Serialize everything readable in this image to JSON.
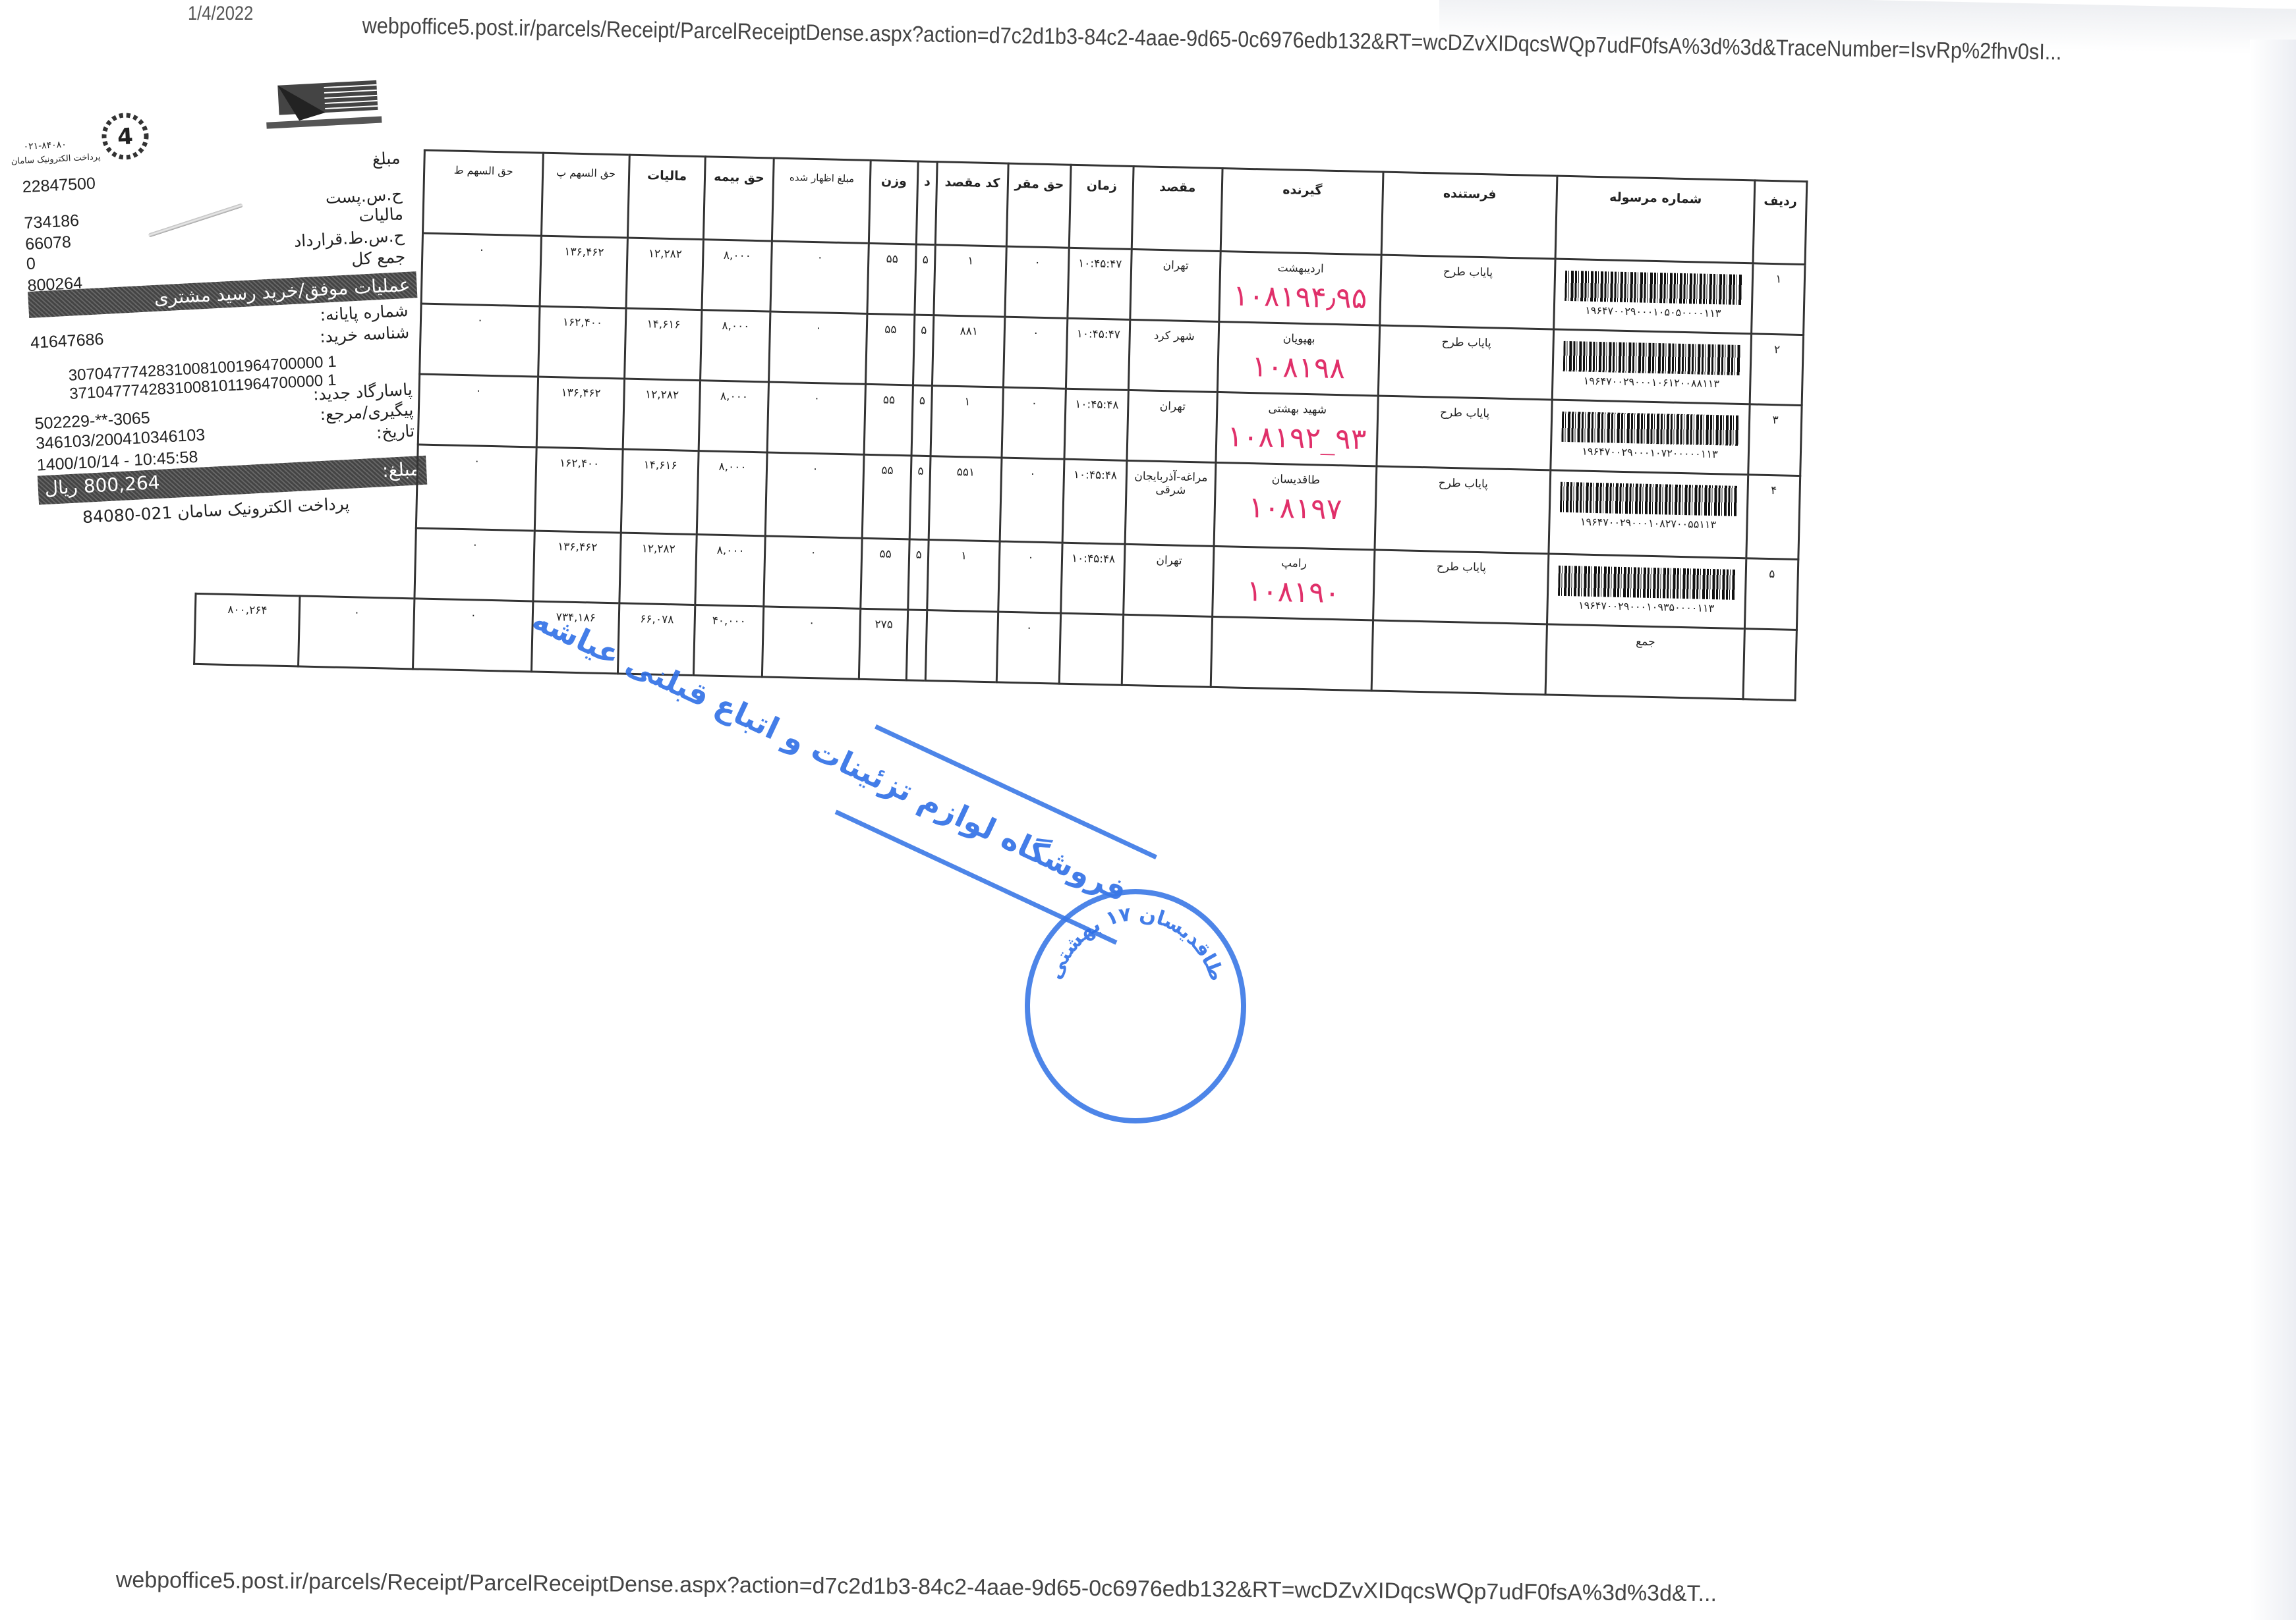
{
  "header": {
    "date": "1/4/2022",
    "url": "webpoffice5.post.ir/parcels/Receipt/ParcelReceiptDense.aspx?action=d7c2d1b3-84c2-4aae-9d65-0c6976edb132&RT=wcDZvXIDqcsWQp7udF0fsA%3d%3d&TraceNumber=IsvRp%2fhv0sI..."
  },
  "receipt": {
    "seal_phone": "۰۲۱-۸۴۰۸۰",
    "seal_text": "پرداخت الکترونیک سامان",
    "seal_number": "4",
    "rows": [
      {
        "label": "مبلغ",
        "value": "22847500"
      },
      {
        "label": "ح.س.پست",
        "value": "734186"
      },
      {
        "label": "مالیات",
        "value": "66078"
      },
      {
        "label": "ح.س.ط.قرارداد",
        "value": "0"
      },
      {
        "label": "جمع کل",
        "value": "800264"
      }
    ],
    "status_band": "عملیات موفق/خرید رسید مشتری",
    "terminal_label": "شماره پایانه:",
    "terminal_value": "41647686",
    "purchase_id_label": "شناسه خرید:",
    "purchase_id_1": "30704777428310081001964700000 1",
    "purchase_id_2": "37104777428310081011964700000 1",
    "card_label": "پاسارگاد جدید:",
    "card_value": "502229-**-3065",
    "ref_label": "پیگیری/مرجع:",
    "ref_value": "346103/200410346103",
    "date_label": "تاریخ:",
    "date_value": "1400/10/14 - 10:45:58",
    "amount_label": "مبلغ:",
    "amount_value": "800,264 ریال",
    "footer": "پرداخت الکترونیک سامان 021-84080"
  },
  "table": {
    "headers": [
      "ردیف",
      "شماره مرسوله",
      "فرستنده",
      "گیرنده",
      "مقصد",
      "زمان",
      "حق مقر",
      "کد مقصد",
      "د",
      "وزن",
      "مبلغ اظهار شده",
      "حق بیمه",
      "مالیات",
      "حق السهم پ",
      "حق السهم ط"
    ],
    "rows": [
      {
        "n": "۱",
        "barcode": "۱۹۶۴۷۰۰۲۹۰۰۰۱۰۵۰۵۰۰۰۰۱۱۳",
        "sender": "پایاب طرح",
        "receiver": "اردیبهشت",
        "hand": "۱۰۸۱۹۴٫۹۵",
        "dest": "تهران",
        "time": "۱۰:۴۵:۴۷",
        "maqar": "۰",
        "code": "۱",
        "d": "۵",
        "weight": "۵۵",
        "declared": "۰",
        "insurance": "۸,۰۰۰",
        "tax": "۱۲,۲۸۲",
        "share_p": "۱۳۶,۴۶۲",
        "share_t": "۰"
      },
      {
        "n": "۲",
        "barcode": "۱۹۶۴۷۰۰۲۹۰۰۰۱۰۶۱۲۰۰۸۸۱۱۳",
        "sender": "پایاب طرح",
        "receiver": "بهپویان",
        "hand": "۱۰۸۱۹۸",
        "dest": "شهر کرد",
        "time": "۱۰:۴۵:۴۷",
        "maqar": "۰",
        "code": "۸۸۱",
        "d": "۵",
        "weight": "۵۵",
        "declared": "۰",
        "insurance": "۸,۰۰۰",
        "tax": "۱۴,۶۱۶",
        "share_p": "۱۶۲,۴۰۰",
        "share_t": "۰"
      },
      {
        "n": "۳",
        "barcode": "۱۹۶۴۷۰۰۲۹۰۰۰۱۰۷۲۰۰۰۰۰۱۱۳",
        "sender": "پایاب طرح",
        "receiver": "شهید بهشتی",
        "hand": "۱۰۸۱۹۲_۹۳",
        "dest": "تهران",
        "time": "۱۰:۴۵:۴۸",
        "maqar": "۰",
        "code": "۱",
        "d": "۵",
        "weight": "۵۵",
        "declared": "۰",
        "insurance": "۸,۰۰۰",
        "tax": "۱۲,۲۸۲",
        "share_p": "۱۳۶,۴۶۲",
        "share_t": "۰"
      },
      {
        "n": "۴",
        "barcode": "۱۹۶۴۷۰۰۲۹۰۰۰۱۰۸۲۷۰۰۵۵۱۱۳",
        "sender": "پایاب طرح",
        "receiver": "طاقدیسان",
        "hand": "۱۰۸۱۹۷",
        "dest": "مراغه-آذربایجان شرقی",
        "time": "۱۰:۴۵:۴۸",
        "maqar": "۰",
        "code": "۵۵۱",
        "d": "۵",
        "weight": "۵۵",
        "declared": "۰",
        "insurance": "۸,۰۰۰",
        "tax": "۱۴,۶۱۶",
        "share_p": "۱۶۲,۴۰۰",
        "share_t": "۰"
      },
      {
        "n": "۵",
        "barcode": "۱۹۶۴۷۰۰۲۹۰۰۰۱۰۹۳۵۰۰۰۰۱۱۳",
        "sender": "پایاب طرح",
        "receiver": "رامپ",
        "hand": "۱۰۸۱۹۰",
        "dest": "تهران",
        "time": "۱۰:۴۵:۴۸",
        "maqar": "۰",
        "code": "۱",
        "d": "۵",
        "weight": "۵۵",
        "declared": "۰",
        "insurance": "۸,۰۰۰",
        "tax": "۱۲,۲۸۲",
        "share_p": "۱۳۶,۴۶۲",
        "share_t": "۰"
      }
    ],
    "total": {
      "label": "جمع",
      "maqar": "۰",
      "weight": "۲۷۵",
      "declared": "۰",
      "insurance": "۴۰,۰۰۰",
      "tax": "۶۶,۰۷۸",
      "share_p": "۷۳۴,۱۸۶",
      "share_t": "۰",
      "extra1": "۰",
      "extra2": "۸۰۰,۲۶۴"
    }
  },
  "stamps": {
    "rect_text": "فروشگاه لوازم تزئینات و اتباع قبلنی عیاشه",
    "circle_text": "طاقدیسان ۱۷ بهشتی"
  },
  "footer": {
    "url": "webpoffice5.post.ir/parcels/Receipt/ParcelReceiptDense.aspx?action=d7c2d1b3-84c2-4aae-9d65-0c6976edb132&RT=wcDZvXIDqcsWQp7udF0fsA%3d%3d&T..."
  },
  "colors": {
    "handwriting": "#e0306a",
    "stamp": "#3a78e6"
  }
}
